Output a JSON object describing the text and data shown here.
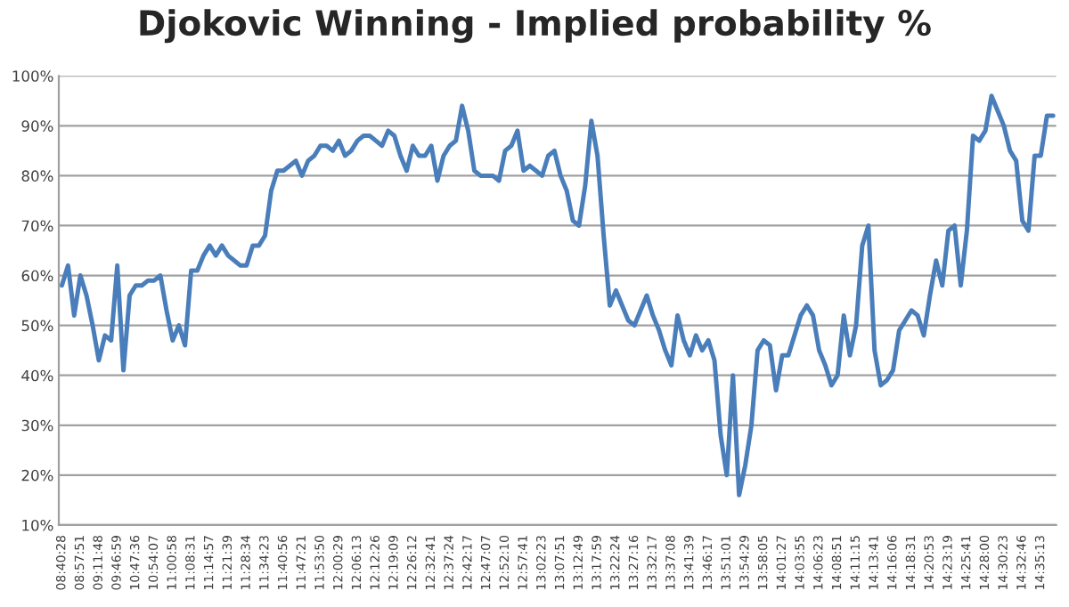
{
  "chart_data": {
    "type": "line",
    "title": "Djokovic Winning - Implied probability %",
    "categories": [
      "08:40:28",
      null,
      null,
      "08:57:51",
      null,
      null,
      "09:11:48",
      null,
      null,
      "09:46:59",
      null,
      null,
      "10:47:36",
      null,
      null,
      "10:54:07",
      null,
      null,
      "11:00:58",
      null,
      null,
      "11:08:31",
      null,
      null,
      "11:14:57",
      null,
      null,
      "11:21:39",
      null,
      null,
      "11:28:34",
      null,
      null,
      "11:34:23",
      null,
      null,
      "11:40:56",
      null,
      null,
      "11:47:21",
      null,
      null,
      "11:53:50",
      null,
      null,
      "12:00:29",
      null,
      null,
      "12:06:13",
      null,
      null,
      "12:12:26",
      null,
      null,
      "12:19:09",
      null,
      null,
      "12:26:12",
      null,
      null,
      "12:32:41",
      null,
      null,
      "12:37:24",
      null,
      null,
      "12:42:17",
      null,
      null,
      "12:47:07",
      null,
      null,
      "12:52:10",
      null,
      null,
      "12:57:41",
      null,
      null,
      "13:02:23",
      null,
      null,
      "13:07:51",
      null,
      null,
      "13:12:49",
      null,
      null,
      "13:17:59",
      null,
      null,
      "13:22:24",
      null,
      null,
      "13:27:16",
      null,
      null,
      "13:32:17",
      null,
      null,
      "13:37:08",
      null,
      null,
      "13:41:39",
      null,
      null,
      "13:46:17",
      null,
      null,
      "13:51:01",
      null,
      null,
      "13:54:29",
      null,
      null,
      "13:58:05",
      null,
      null,
      "14:01:27",
      null,
      null,
      "14:03:55",
      null,
      null,
      "14:06:23",
      null,
      null,
      "14:08:51",
      null,
      null,
      "14:11:15",
      null,
      null,
      "14:13:41",
      null,
      null,
      "14:16:06",
      null,
      null,
      "14:18:31",
      null,
      null,
      "14:20:53",
      null,
      null,
      "14:23:19",
      null,
      null,
      "14:25:41",
      null,
      null,
      "14:28:00",
      null,
      null,
      "14:30:23",
      null,
      null,
      "14:32:46",
      null,
      null,
      "14:35:13",
      null,
      null
    ],
    "series": [
      {
        "color": "#4a7ebb",
        "values": [
          58,
          62,
          52,
          60,
          56,
          50,
          43,
          48,
          47,
          62,
          41,
          56,
          58,
          58,
          59,
          59,
          60,
          53,
          47,
          50,
          46,
          61,
          61,
          64,
          66,
          64,
          66,
          64,
          63,
          62,
          62,
          66,
          66,
          68,
          77,
          81,
          81,
          82,
          83,
          80,
          83,
          84,
          86,
          86,
          85,
          87,
          84,
          85,
          87,
          88,
          88,
          87,
          86,
          89,
          88,
          84,
          81,
          86,
          84,
          84,
          86,
          79,
          84,
          86,
          87,
          94,
          89,
          81,
          80,
          80,
          80,
          79,
          85,
          86,
          89,
          81,
          82,
          81,
          80,
          84,
          85,
          80,
          77,
          71,
          70,
          78,
          91,
          84,
          68,
          54,
          57,
          54,
          51,
          50,
          53,
          56,
          52,
          49,
          45,
          42,
          52,
          47,
          44,
          48,
          45,
          47,
          43,
          28,
          20,
          40,
          16,
          22,
          30,
          45,
          47,
          46,
          37,
          44,
          44,
          48,
          52,
          54,
          52,
          45,
          42,
          38,
          40,
          52,
          44,
          50,
          66,
          70,
          45,
          38,
          39,
          41,
          49,
          51,
          53,
          52,
          48,
          56,
          63,
          58,
          69,
          70,
          58,
          69,
          88,
          87,
          89,
          96,
          93,
          90,
          85,
          83,
          71,
          69,
          84,
          84,
          92,
          92
        ]
      }
    ],
    "ylim": [
      10,
      100
    ],
    "yticks": [
      {
        "value": 10,
        "label": "10%"
      },
      {
        "value": 20,
        "label": "20%"
      },
      {
        "value": 30,
        "label": "30%"
      },
      {
        "value": 40,
        "label": "40%"
      },
      {
        "value": 50,
        "label": "50%"
      },
      {
        "value": 60,
        "label": "60%"
      },
      {
        "value": 70,
        "label": "70%"
      },
      {
        "value": 80,
        "label": "80%"
      },
      {
        "value": 90,
        "label": "90%"
      },
      {
        "value": 100,
        "label": "100%"
      }
    ],
    "grid": "y",
    "marker": "none",
    "line_style": "solid",
    "legend": false
  }
}
